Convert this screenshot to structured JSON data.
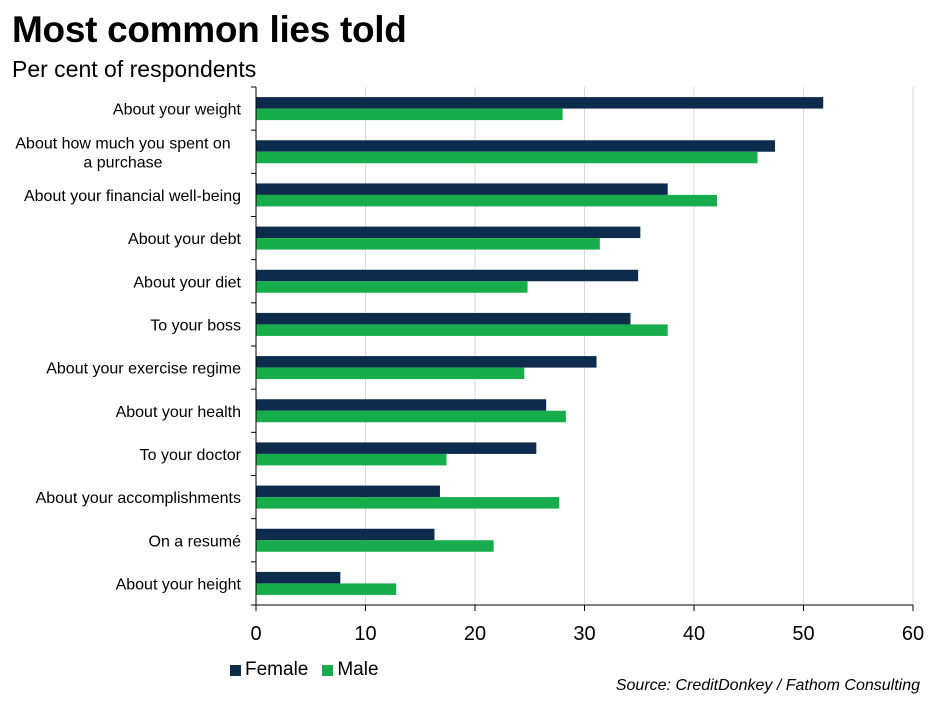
{
  "chart_data": {
    "type": "bar",
    "orientation": "horizontal",
    "title": "Most common lies told",
    "subtitle": "Per cent of respondents",
    "categories": [
      [
        "About your weight"
      ],
      [
        "About how much you spent on",
        "a purchase"
      ],
      [
        "About your financial well-being"
      ],
      [
        "About your debt"
      ],
      [
        "About your diet"
      ],
      [
        "To your boss"
      ],
      [
        "About your exercise regime"
      ],
      [
        "About your health"
      ],
      [
        "To your doctor"
      ],
      [
        "About your accomplishments"
      ],
      [
        "On a resumé"
      ],
      [
        "About your height"
      ]
    ],
    "series": [
      {
        "name": "Female",
        "color": "#0d2c4b",
        "values": [
          51.8,
          47.4,
          37.6,
          35.1,
          34.9,
          34.2,
          31.1,
          26.5,
          25.6,
          16.8,
          16.3,
          7.7
        ]
      },
      {
        "name": "Male",
        "color": "#17ad4c",
        "values": [
          28.0,
          45.8,
          42.1,
          31.4,
          24.8,
          37.6,
          24.5,
          28.3,
          17.4,
          27.7,
          21.7,
          12.8
        ]
      }
    ],
    "xlim": [
      0,
      60
    ],
    "xticks": [
      0,
      10,
      20,
      30,
      40,
      50,
      60
    ],
    "grid": true,
    "legend_position": "bottom-left",
    "source": "Source: CreditDonkey / Fathom Consulting"
  }
}
